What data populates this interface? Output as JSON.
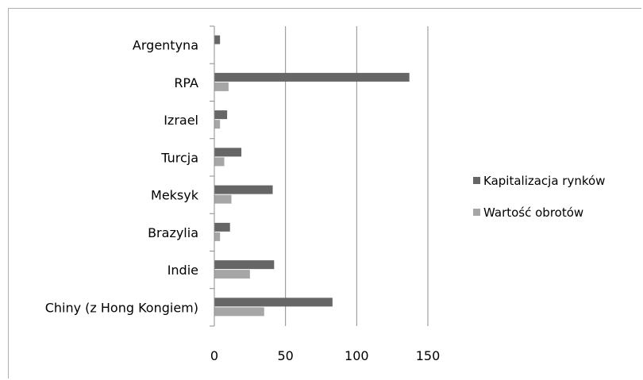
{
  "chart_data": {
    "type": "bar",
    "orientation": "horizontal",
    "categories": [
      "Argentyna",
      "RPA",
      "Izrael",
      "Turcja",
      "Meksyk",
      "Brazylia",
      "Indie",
      "Chiny (z Hong Kongiem)"
    ],
    "series": [
      {
        "name": "Kapitalizacja rynków",
        "color": "#666666",
        "values": [
          4,
          137,
          9,
          19,
          41,
          11,
          42,
          83
        ]
      },
      {
        "name": "Wartość obrotów",
        "color": "#a6a6a6",
        "values": [
          0,
          10,
          4,
          7,
          12,
          4,
          25,
          35
        ]
      }
    ],
    "xlim": [
      0,
      150
    ],
    "xticks": [
      0,
      50,
      100,
      150
    ],
    "xticklabels": [
      "0",
      "50",
      "100",
      "150"
    ],
    "grid": true,
    "legend_position": "right"
  }
}
